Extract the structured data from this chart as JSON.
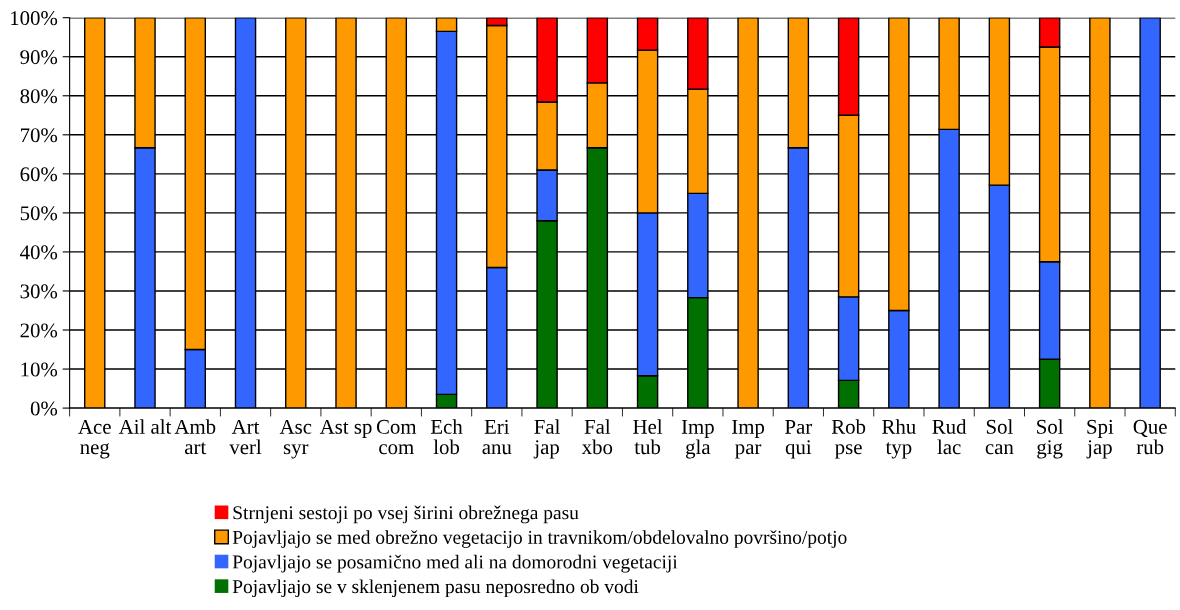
{
  "chart_data": {
    "type": "bar",
    "stacked": true,
    "categories": [
      "Ace\nneg",
      "Ail alt",
      "Amb\nart",
      "Art\nverl",
      "Asc\nsyr",
      "Ast sp",
      "Com\ncom",
      "Ech\nlob",
      "Eri\nanu",
      "Fal\njap",
      "Fal\nxbo",
      "Hel\ntub",
      "Imp\ngla",
      "Imp\npar",
      "Par\nqui",
      "Rob\npse",
      "Rhu\ntyp",
      "Rud\nlac",
      "Sol\ncan",
      "Sol\ngig",
      "Spi\njap",
      "Que\nrub"
    ],
    "series": [
      {
        "name": "Pojavljajo se v sklenjenem pasu neposredno ob vodi",
        "color": "#007000",
        "values": [
          0,
          0,
          0,
          0,
          0,
          0,
          0,
          3.5,
          0,
          48,
          66.7,
          8.3,
          28.3,
          0,
          0,
          7.1,
          0,
          0,
          0,
          12.5,
          0,
          0
        ]
      },
      {
        "name": "Pojavljajo se posamično med ali na domorodni vegetaciji",
        "color": "#3366ff",
        "values": [
          0,
          66.7,
          15,
          100,
          0,
          0,
          0,
          93,
          36,
          13,
          0,
          41.7,
          26.7,
          0,
          66.7,
          21.4,
          25,
          71.4,
          57.1,
          25,
          0,
          100
        ]
      },
      {
        "name": "Pojavljajo se med obrežno vegetacijo in travnikom/obdelovalno površino/potjo",
        "color": "#ff9900",
        "values": [
          100,
          33.3,
          85,
          0,
          100,
          100,
          100,
          3.5,
          62,
          17.4,
          16.6,
          41.7,
          26.7,
          100,
          33.3,
          46.5,
          75,
          28.6,
          42.9,
          55,
          100,
          0
        ]
      },
      {
        "name": "Strnjeni sestoji po vsej širini obrežnega pasu",
        "color": "#ff0000",
        "values": [
          0,
          0,
          0,
          0,
          0,
          0,
          0,
          0,
          2,
          21.6,
          16.7,
          8.3,
          18.3,
          0,
          0,
          25,
          0,
          0,
          0,
          7.5,
          0,
          0
        ]
      }
    ],
    "ylim": [
      0,
      100
    ],
    "yticks": [
      {
        "value": 0,
        "label": "0%"
      },
      {
        "value": 10,
        "label": "10%"
      },
      {
        "value": 20,
        "label": "20%"
      },
      {
        "value": 30,
        "label": "30%"
      },
      {
        "value": 40,
        "label": "40%"
      },
      {
        "value": 50,
        "label": "50%"
      },
      {
        "value": 60,
        "label": "60%"
      },
      {
        "value": 70,
        "label": "70%"
      },
      {
        "value": 80,
        "label": "80%"
      },
      {
        "value": 90,
        "label": "90%"
      },
      {
        "value": 100,
        "label": "100%"
      }
    ],
    "grid": "y",
    "legend": "bottom"
  }
}
